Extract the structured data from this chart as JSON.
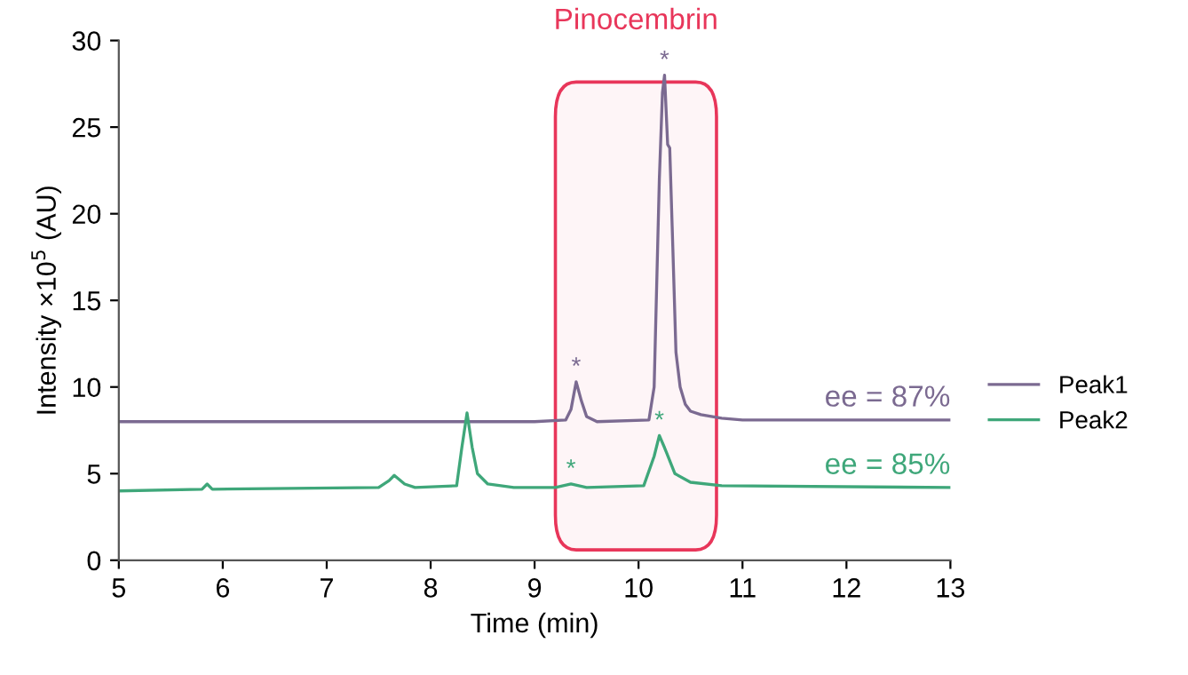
{
  "chart_data": {
    "type": "line",
    "xlabel": "Time (min)",
    "ylabel": "Intensity ×10$^{5}$ (AU)",
    "xlim": [
      5,
      13
    ],
    "xticks": [
      5,
      6,
      7,
      8,
      9,
      10,
      11,
      12,
      13
    ],
    "ylim": [
      0,
      30
    ],
    "yticks": [
      0,
      5,
      10,
      15,
      20,
      25,
      30
    ],
    "grid": false,
    "legend": "right",
    "marker": "none",
    "line_style": "solid",
    "series": [
      {
        "name": "Peak1",
        "color": "#7b6a91",
        "x": [
          5,
          6,
          7,
          8,
          9,
          9.3,
          9.35,
          9.4,
          9.45,
          9.5,
          9.6,
          10.1,
          10.15,
          10.2,
          10.23,
          10.25,
          10.28,
          10.3,
          10.33,
          10.36,
          10.4,
          10.45,
          10.5,
          10.6,
          10.8,
          11,
          12,
          13
        ],
        "values": [
          8,
          8,
          8,
          8,
          8,
          8.1,
          8.7,
          10.3,
          9.2,
          8.3,
          8,
          8.1,
          10,
          22,
          27,
          28,
          24,
          23.8,
          18,
          12,
          10,
          9,
          8.6,
          8.4,
          8.2,
          8.1,
          8.1,
          8.1
        ]
      },
      {
        "name": "Peak2",
        "color": "#3fa77a",
        "x": [
          5,
          5.8,
          5.85,
          5.9,
          7.5,
          7.6,
          7.65,
          7.75,
          7.85,
          8.25,
          8.3,
          8.35,
          8.4,
          8.45,
          8.55,
          8.8,
          9.2,
          9.35,
          9.5,
          10.05,
          10.15,
          10.2,
          10.25,
          10.35,
          10.5,
          10.8,
          13
        ],
        "values": [
          4,
          4.1,
          4.4,
          4.1,
          4.2,
          4.6,
          4.9,
          4.4,
          4.2,
          4.3,
          6.5,
          8.5,
          6.5,
          5,
          4.4,
          4.2,
          4.2,
          4.4,
          4.2,
          4.3,
          6,
          7.2,
          6.5,
          5,
          4.5,
          4.3,
          4.2
        ]
      }
    ],
    "bands": [
      {
        "axis": "x",
        "from": 9.2,
        "to": 10.75,
        "label": "Pinocembrin",
        "color": "#e8365a"
      }
    ],
    "annotations": [
      {
        "text": "*",
        "x": 9.4,
        "y": 10.3
      },
      {
        "text": "*",
        "x": 10.25,
        "y": 28
      },
      {
        "text": "*",
        "x": 9.35,
        "y": 4.4
      },
      {
        "text": "*",
        "x": 10.2,
        "y": 7.2
      },
      {
        "text": "ee = 87%",
        "x": 13,
        "y": 8.1
      },
      {
        "text": "ee = 85%",
        "x": 13,
        "y": 4.2
      }
    ]
  }
}
